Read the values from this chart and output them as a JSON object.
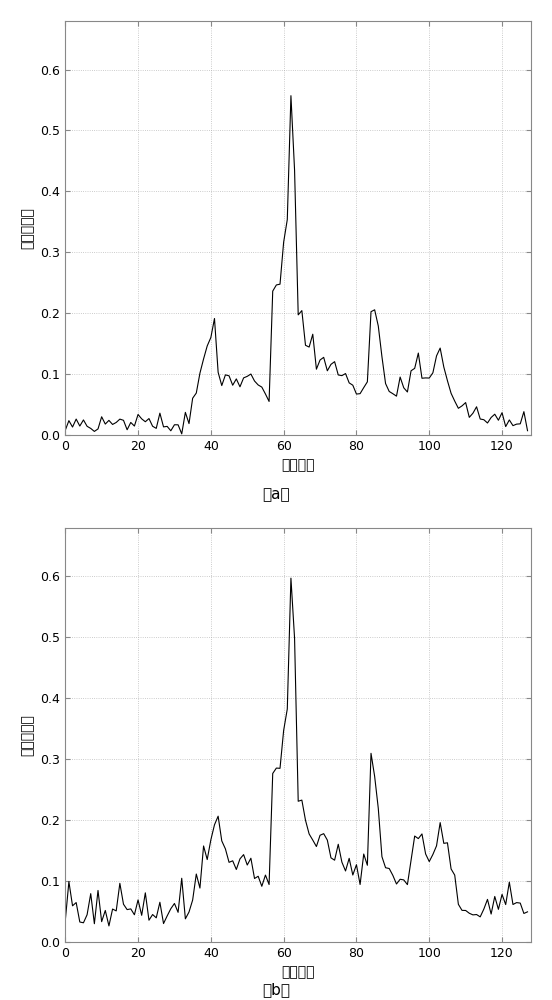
{
  "title_a": "（a）",
  "title_b": "（b）",
  "xlabel": "距离单元",
  "ylabel": "归一化幅度",
  "xlim": [
    0,
    128
  ],
  "ylim": [
    0,
    0.68
  ],
  "xticks": [
    0,
    20,
    40,
    60,
    80,
    100,
    120
  ],
  "yticks": [
    0.0,
    0.1,
    0.2,
    0.3,
    0.4,
    0.5,
    0.6
  ],
  "line_color": "#000000",
  "line_width": 0.8,
  "background_color": "#ffffff"
}
